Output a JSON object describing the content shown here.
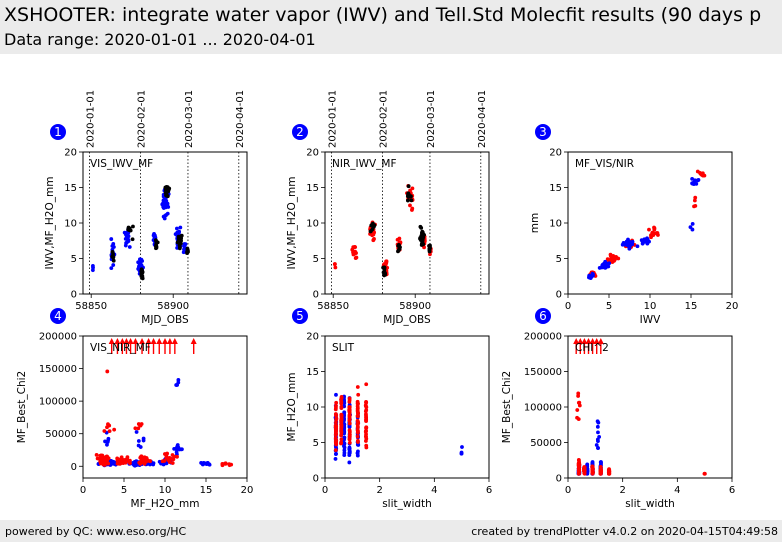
{
  "header": {
    "title": "XSHOOTER: integrate water vapor (IWV) and Tell.Std Molecfit results (90 days p",
    "subtitle": "Data range: 2020-01-01 ... 2020-04-01"
  },
  "footer": {
    "left": "powered by QC: www.eso.org/HC",
    "right": "created by trendPlotter v4.0.2 on 2020-04-15T04:49:58"
  },
  "colors": {
    "series_a": "#0000ff",
    "series_b": "#ff0000",
    "series_c": "#000000",
    "badge": "#0000ff"
  },
  "chart_data": [
    {
      "id": 1,
      "type": "scatter",
      "label": "VIS_IWV_MF",
      "xlabel": "MJD_OBS",
      "ylabel": "IWV,MF_H2O_mm",
      "xlim": [
        58845,
        58945
      ],
      "ylim": [
        0,
        20
      ],
      "xticks": [
        58850,
        58900
      ],
      "yticks": [
        0,
        5,
        10,
        15,
        20
      ],
      "date_markers": [
        {
          "label": "2020-01-01",
          "x": 58849
        },
        {
          "label": "2020-02-01",
          "x": 58880
        },
        {
          "label": "2020-03-01",
          "x": 58909
        },
        {
          "label": "2020-04-01",
          "x": 58940
        }
      ],
      "series": [
        {
          "color_key": "series_a",
          "clusters": [
            [
              58851,
              3.5,
              0.6,
              1,
              0.8,
              3
            ],
            [
              58863,
              5.5,
              2.5,
              3,
              3,
              20
            ],
            [
              58872,
              8,
              2.5,
              2,
              2,
              22
            ],
            [
              58880,
              3.8,
              1.8,
              2,
              1.5,
              35
            ],
            [
              58889,
              7.5,
              1.5,
              1,
              1.2,
              18
            ],
            [
              58895,
              13,
              3,
              2,
              2.5,
              40
            ],
            [
              58903,
              8,
              2,
              2,
              2.2,
              30
            ],
            [
              58907,
              6.5,
              1,
              1,
              1,
              12
            ]
          ]
        },
        {
          "color_key": "series_c",
          "clusters": [
            [
              58863,
              5.5,
              1.5,
              2,
              1.5,
              6
            ],
            [
              58874,
              9,
              2.5,
              2,
              1.5,
              8
            ],
            [
              58881,
              3,
              1.2,
              2,
              1,
              14
            ],
            [
              58890,
              7,
              1.5,
              1,
              1,
              8
            ],
            [
              58896,
              14.5,
              2,
              2,
              2,
              15
            ],
            [
              58904,
              7.5,
              1.5,
              2,
              1.5,
              25
            ],
            [
              58909,
              6,
              0.8,
              1,
              0.8,
              8
            ]
          ]
        }
      ]
    },
    {
      "id": 2,
      "type": "scatter",
      "label": "NIR_IWV_MF",
      "xlabel": "MJD_OBS",
      "ylabel": "IWV,MF_H2O_mm",
      "xlim": [
        58845,
        58945
      ],
      "ylim": [
        0,
        20
      ],
      "xticks": [
        58850,
        58900
      ],
      "yticks": [
        0,
        5,
        10,
        15,
        20
      ],
      "date_markers": [
        {
          "label": "2020-01-01",
          "x": 58849
        },
        {
          "label": "2020-02-01",
          "x": 58880
        },
        {
          "label": "2020-03-01",
          "x": 58909
        },
        {
          "label": "2020-04-01",
          "x": 58940
        }
      ],
      "series": [
        {
          "color_key": "series_b",
          "clusters": [
            [
              58851,
              4,
              0.6,
              1,
              0.5,
              3
            ],
            [
              58863,
              6,
              2,
              2,
              2,
              14
            ],
            [
              58874,
              9,
              2.5,
              2,
              2,
              18
            ],
            [
              58882,
              3.5,
              1.5,
              2,
              1.5,
              30
            ],
            [
              58890,
              7,
              2,
              1,
              1.5,
              15
            ],
            [
              58897,
              13.5,
              2.5,
              2,
              2,
              28
            ],
            [
              58905,
              7.5,
              1.5,
              2,
              1.5,
              28
            ],
            [
              58909,
              6,
              0.8,
              1,
              0.8,
              10
            ]
          ]
        },
        {
          "color_key": "series_c",
          "clusters": [
            [
              58874,
              9.5,
              2.5,
              2,
              2,
              8
            ],
            [
              58881,
              3,
              1.2,
              2,
              1,
              14
            ],
            [
              58890,
              6.5,
              1.5,
              1,
              1,
              8
            ],
            [
              58896,
              14,
              2,
              2,
              2,
              12
            ],
            [
              58904,
              8,
              2,
              2,
              2,
              22
            ],
            [
              58909,
              6.5,
              1,
              1,
              1,
              8
            ]
          ]
        }
      ]
    },
    {
      "id": 3,
      "type": "scatter",
      "label": "MF_VIS/NIR",
      "xlabel": "IWV",
      "ylabel": "mm",
      "xlim": [
        0,
        20
      ],
      "ylim": [
        0,
        20
      ],
      "xticks": [
        0,
        5,
        10,
        15,
        20
      ],
      "yticks": [
        0,
        5,
        10,
        15,
        20
      ],
      "series": [
        {
          "color_key": "series_b",
          "clusters": [
            [
              3,
              2.8,
              0.6,
              1,
              0.5,
              14
            ],
            [
              5.5,
              5,
              1,
              1.2,
              0.8,
              22
            ],
            [
              7.5,
              7,
              1,
              1,
              0.8,
              24
            ],
            [
              10.5,
              8.5,
              1,
              2,
              1.2,
              14
            ],
            [
              16.5,
              16.8,
              0.8,
              1,
              0.8,
              8
            ],
            [
              15.3,
              13,
              0.5,
              0.2,
              1.2,
              4
            ]
          ]
        },
        {
          "color_key": "series_a",
          "clusters": [
            [
              2.8,
              2.5,
              0.4,
              1,
              0.5,
              14
            ],
            [
              4.5,
              4,
              0.8,
              1.2,
              0.8,
              22
            ],
            [
              7.5,
              7,
              1.2,
              1.2,
              0.8,
              22
            ],
            [
              9.5,
              7.5,
              0.8,
              1.5,
              0.8,
              16
            ],
            [
              15.5,
              15.8,
              0.6,
              0.3,
              0.8,
              10
            ],
            [
              15.2,
              9.5,
              0.4,
              0.3,
              0.5,
              3
            ]
          ]
        }
      ]
    },
    {
      "id": 4,
      "type": "scatter",
      "label": "VIS_NIR_MF",
      "xlabel": "MF_H2O_mm",
      "ylabel": "MF_Best_Chi2",
      "xlim": [
        0,
        20
      ],
      "ylim": [
        -18000,
        200000
      ],
      "xticks": [
        0,
        5,
        10,
        15,
        20
      ],
      "yticks": [
        0,
        50000,
        100000,
        150000,
        200000
      ],
      "series": [
        {
          "color_key": "series_a",
          "clusters": [
            [
              3,
              5000,
              1.5,
              1.2,
              5000,
              55
            ],
            [
              6.5,
              5000,
              1,
              1.5,
              5000,
              45
            ],
            [
              8,
              5000,
              1,
              1.2,
              5000,
              30
            ],
            [
              10,
              8000,
              1,
              1.2,
              8000,
              18
            ],
            [
              11.5,
              25000,
              0.8,
              0.8,
              20000,
              12
            ],
            [
              15,
              4000,
              1,
              1,
              3000,
              14
            ],
            [
              3,
              40000,
              1,
              1,
              20000,
              6
            ],
            [
              7,
              38000,
              1,
              1,
              20000,
              6
            ],
            [
              11.5,
              130000,
              0.5,
              0.3,
              20000,
              4
            ]
          ]
        },
        {
          "color_key": "series_b",
          "clusters": [
            [
              2.5,
              10000,
              1,
              1.2,
              12000,
              35
            ],
            [
              5,
              8000,
              1.2,
              1.2,
              8000,
              35
            ],
            [
              7.5,
              10000,
              1.2,
              1.2,
              10000,
              28
            ],
            [
              10.5,
              12000,
              1.2,
              1.2,
              12000,
              16
            ],
            [
              17.5,
              3000,
              1.2,
              1,
              2000,
              8
            ],
            [
              3,
              145000,
              0.2,
              0.2,
              3000,
              1
            ],
            [
              3,
              55000,
              1,
              1.2,
              15000,
              6
            ],
            [
              7,
              60000,
              1,
              1.2,
              15000,
              6
            ]
          ]
        }
      ],
      "overflow_markers": [
        {
          "color_key": "series_b",
          "x": [
            3.5,
            4.2,
            4.8,
            5.3,
            5.8,
            6.4,
            7.2,
            8,
            8.6,
            9.3,
            10,
            10.6,
            11.2,
            13.5
          ],
          "y": 200000
        }
      ]
    },
    {
      "id": 5,
      "type": "scatter",
      "label": "SLIT",
      "xlabel": "slit_width",
      "ylabel": "MF_H2O_mm",
      "xlim": [
        0,
        6
      ],
      "ylim": [
        0,
        20
      ],
      "xticks": [
        0,
        2,
        4,
        6
      ],
      "yticks": [
        0,
        5,
        10,
        15,
        20
      ],
      "series": [
        {
          "color_key": "series_a",
          "clusters": [
            [
              0.4,
              7,
              0.02,
              0.01,
              6,
              40
            ],
            [
              0.7,
              7,
              0.02,
              0.01,
              6,
              40
            ],
            [
              0.9,
              7,
              0.02,
              0.01,
              6,
              35
            ],
            [
              1.2,
              7,
              0.02,
              0.01,
              6,
              28
            ],
            [
              5,
              4,
              0.02,
              0.01,
              1,
              4
            ]
          ]
        },
        {
          "color_key": "series_b",
          "clusters": [
            [
              0.4,
              8,
              0.02,
              0.01,
              6,
              35
            ],
            [
              0.6,
              8,
              0.02,
              0.01,
              6,
              35
            ],
            [
              0.9,
              8,
              0.02,
              0.01,
              6,
              30
            ],
            [
              1.2,
              8,
              0.02,
              0.01,
              6,
              30
            ],
            [
              1.5,
              8,
              0.02,
              0.01,
              6,
              30
            ]
          ]
        }
      ]
    },
    {
      "id": 6,
      "type": "scatter",
      "label": "CHI^2",
      "xlabel": "slit_width",
      "ylabel": "MF_Best_Chi2",
      "xlim": [
        0,
        6
      ],
      "ylim": [
        0,
        200000
      ],
      "xticks": [
        0,
        2,
        4,
        6
      ],
      "yticks": [
        0,
        50000,
        100000,
        150000,
        200000
      ],
      "series": [
        {
          "color_key": "series_a",
          "clusters": [
            [
              0.4,
              10000,
              0.02,
              0.01,
              12000,
              40
            ],
            [
              0.7,
              10000,
              0.02,
              0.01,
              12000,
              35
            ],
            [
              0.9,
              12000,
              0.02,
              0.01,
              14000,
              30
            ],
            [
              1.1,
              60000,
              0.1,
              0.02,
              30000,
              10
            ],
            [
              1.2,
              15000,
              0.02,
              0.01,
              15000,
              20
            ]
          ]
        },
        {
          "color_key": "series_b",
          "clusters": [
            [
              0.4,
              15000,
              0.02,
              0.01,
              15000,
              35
            ],
            [
              0.6,
              10000,
              0.02,
              0.01,
              10000,
              30
            ],
            [
              0.9,
              10000,
              0.02,
              0.01,
              10000,
              30
            ],
            [
              1.2,
              10000,
              0.02,
              0.01,
              10000,
              25
            ],
            [
              1.5,
              8000,
              0.02,
              0.01,
              8000,
              20
            ],
            [
              5,
              5000,
              0.02,
              0.01,
              2000,
              3
            ],
            [
              0.4,
              100000,
              0.1,
              0.02,
              40000,
              8
            ]
          ]
        }
      ],
      "overflow_markers": [
        {
          "color_key": "series_b",
          "x": [
            0.3,
            0.45,
            0.6,
            0.75,
            0.9,
            1.05,
            1.2
          ],
          "y": 200000
        }
      ]
    }
  ]
}
